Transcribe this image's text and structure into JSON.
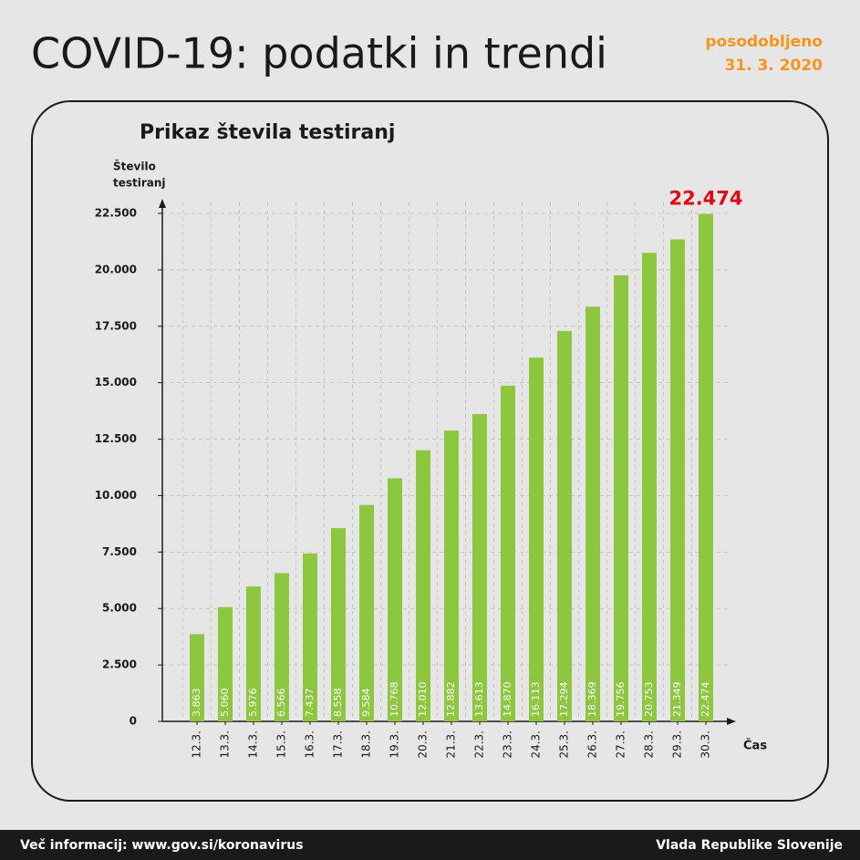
{
  "header": {
    "title": "COVID-19: podatki in trendi",
    "updated": "posodobljeno",
    "date": "31. 3. 2020"
  },
  "footer": {
    "left": "Več informacij: www.gov.si/koronavirus",
    "right": "Vlada Republike Slovenije"
  },
  "chart_data": {
    "type": "bar",
    "title": "Prikaz števila testiranj",
    "ylabel": [
      "Število",
      "testiranj"
    ],
    "xlabel": "Čas",
    "categories": [
      "12.3.",
      "13.3.",
      "14.3.",
      "15.3.",
      "16.3.",
      "17.3.",
      "18.3.",
      "19.3.",
      "20.3.",
      "21.3.",
      "22.3.",
      "23.3.",
      "24.3.",
      "25.3.",
      "26.3.",
      "27.3.",
      "28.3.",
      "29.3.",
      "30.3."
    ],
    "values": [
      3863,
      5060,
      5976,
      6566,
      7437,
      8558,
      9584,
      10768,
      12010,
      12882,
      13613,
      14870,
      16113,
      17294,
      18369,
      19756,
      20753,
      21349,
      22474
    ],
    "value_labels": [
      "3.863",
      "5.060",
      "5.976",
      "6.566",
      "7.437",
      "8.558",
      "9.584",
      "10.768",
      "12.010",
      "12.882",
      "13.613",
      "14.870",
      "16.113",
      "17.294",
      "18.369",
      "19.756",
      "20.753",
      "21.349",
      "22.474"
    ],
    "color": "#8dc63f",
    "highlight_color": "#e30613",
    "ylim": [
      0,
      22500
    ],
    "yticks": [
      0,
      {
        "value": 2500,
        "label": "2.500"
      },
      {
        "value": 5000,
        "label": "5.000"
      },
      {
        "value": 7500,
        "label": "7.500"
      },
      {
        "value": 10000,
        "label": "10.000"
      },
      {
        "value": 12500,
        "label": "12.500"
      },
      {
        "value": 15000,
        "label": "15.000"
      },
      {
        "value": 17500,
        "label": "17.500"
      },
      {
        "value": 20000,
        "label": "20.000"
      },
      {
        "value": 22500,
        "label": "22.500"
      }
    ],
    "grid": true
  }
}
